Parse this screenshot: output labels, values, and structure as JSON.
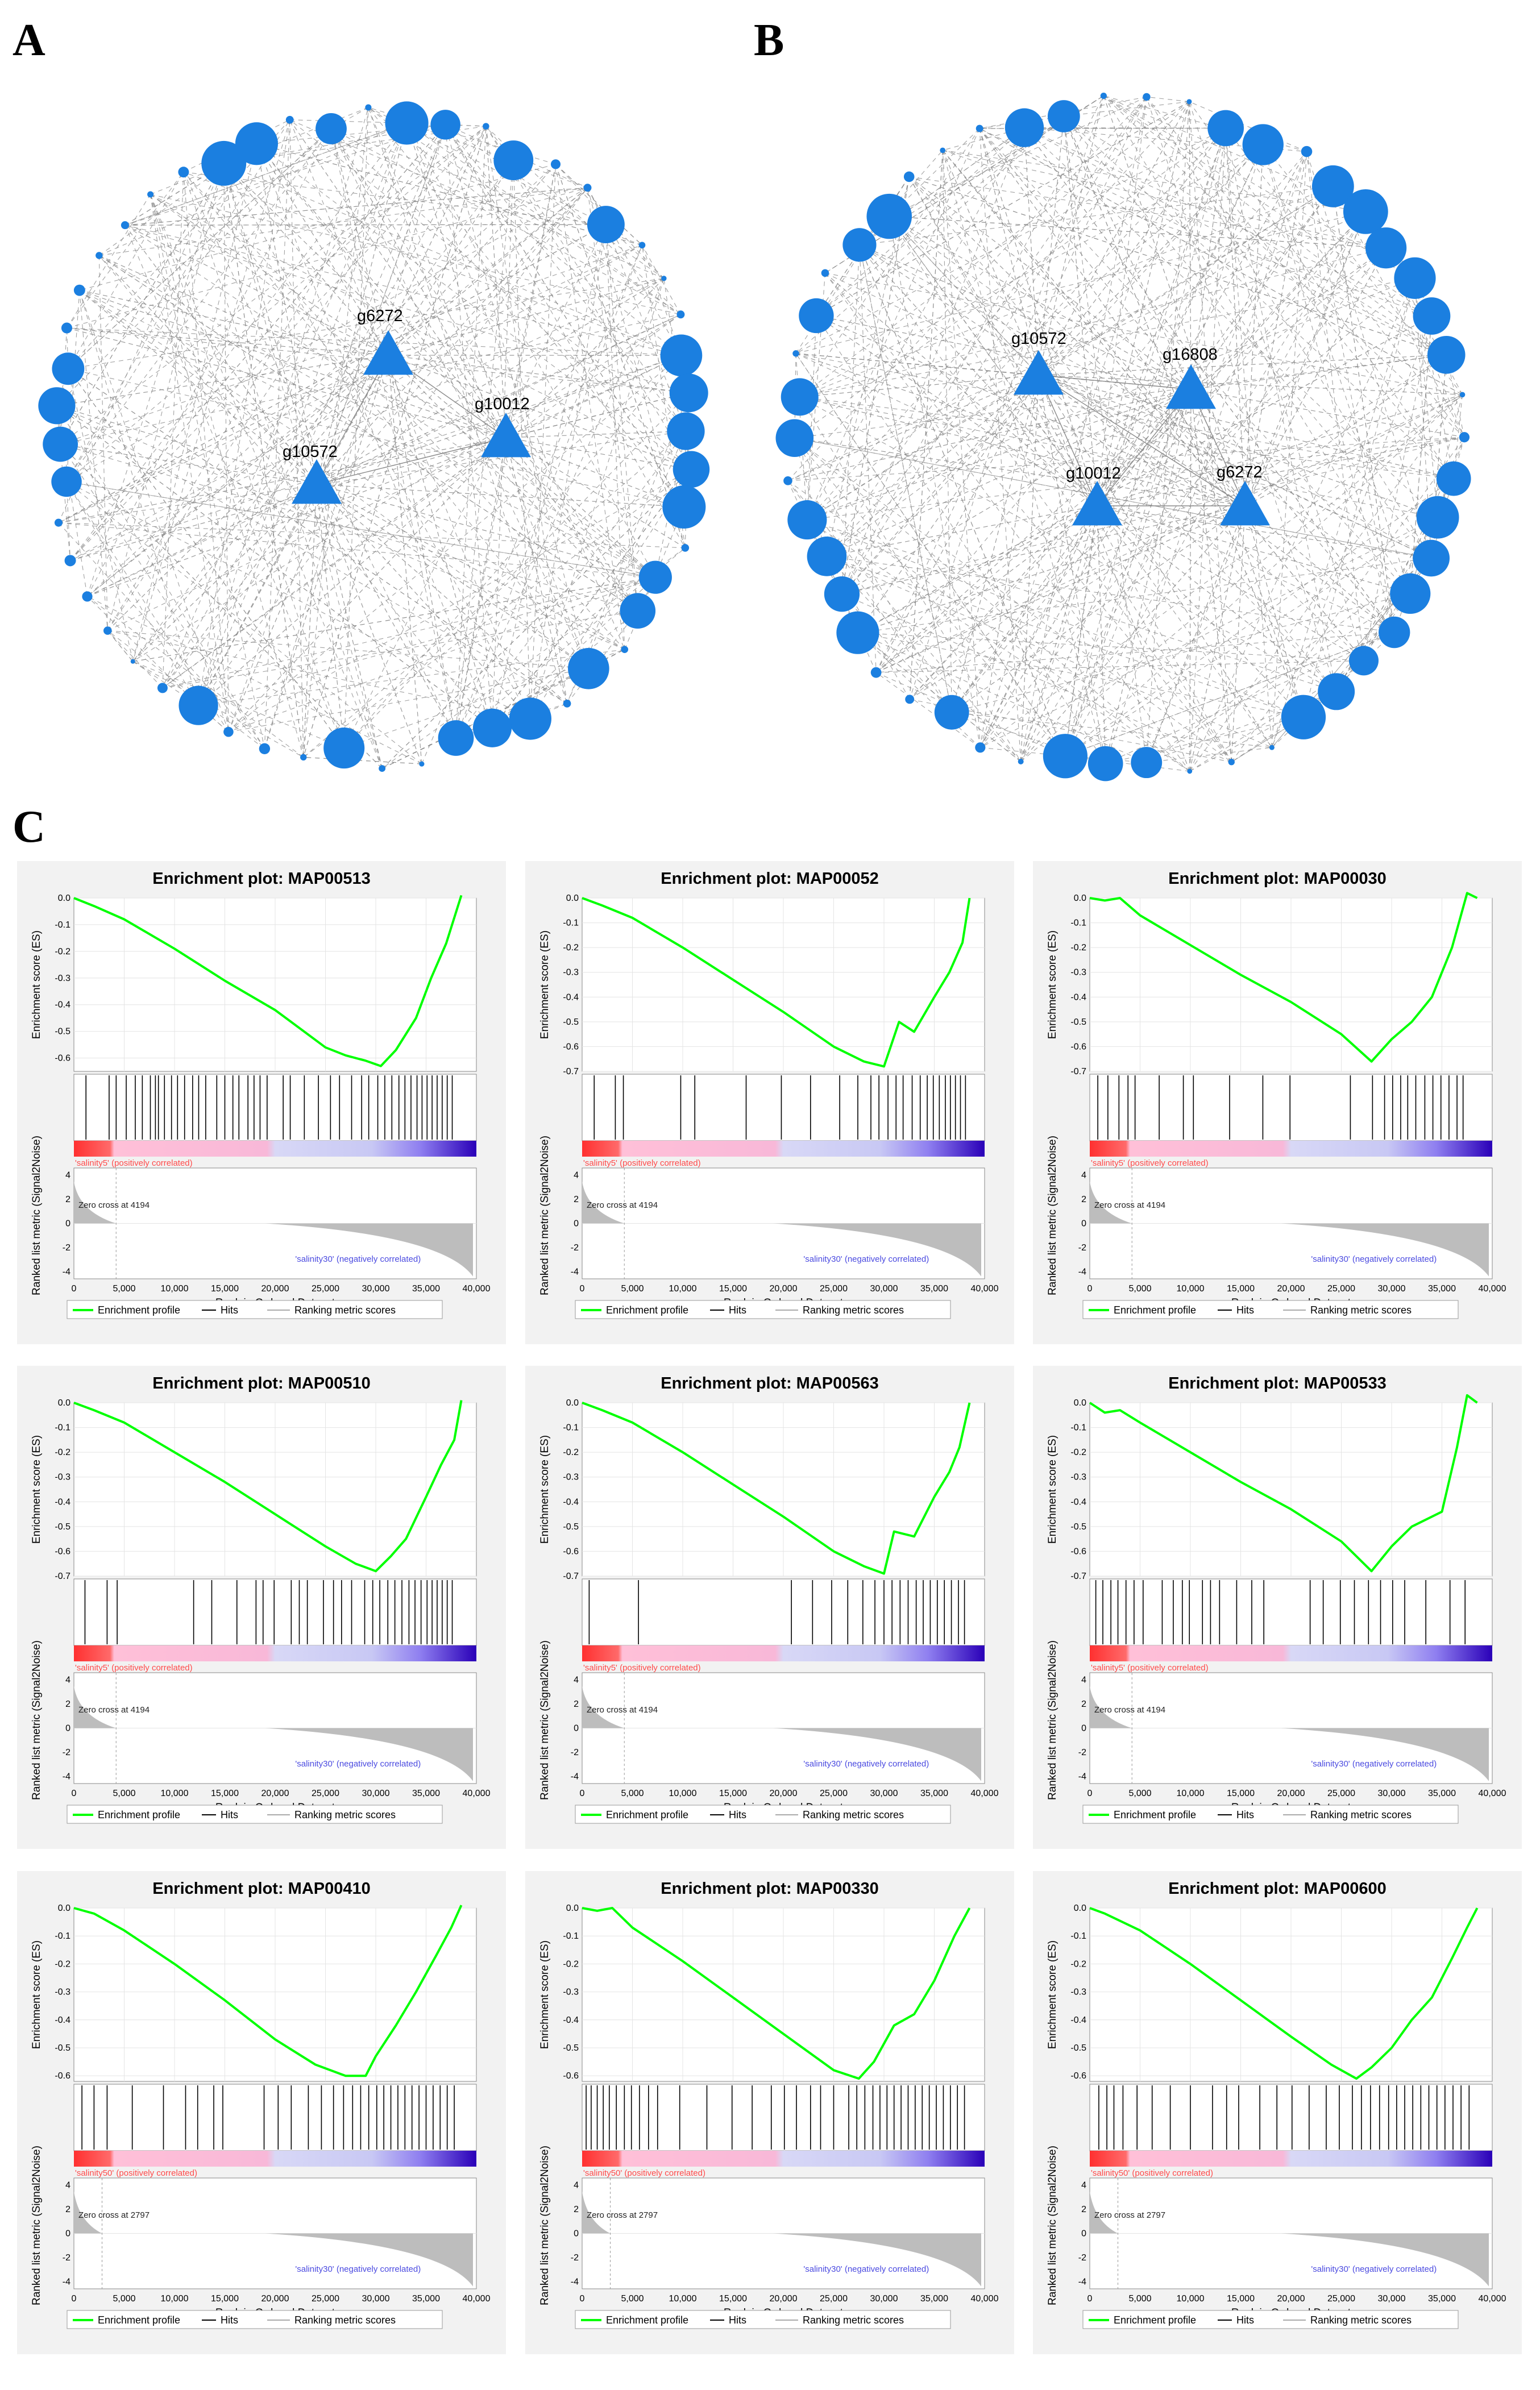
{
  "panel_labels": {
    "a": "A",
    "b": "B",
    "c": "C"
  },
  "colors": {
    "node": "#1b7fe0",
    "edge": "#8a8a8a",
    "es_line": "#00ff00",
    "pos": "#ff3030",
    "neg": "#3000c0",
    "metric": "#bdbdbd"
  },
  "networks": [
    {
      "id": "A",
      "hub_labels": [
        "g6272",
        "g10012",
        "g10572"
      ]
    },
    {
      "id": "B",
      "hub_labels": [
        "g10572",
        "g16808",
        "g10012",
        "g6272"
      ]
    }
  ],
  "gsea_common": {
    "ylabel_es": "Enrichment score (ES)",
    "ylabel_metric": "Ranked list metric (Signal2Noise)",
    "xlabel": "Rank in Ordered Dataset",
    "x_ticks": [
      "0",
      "5,000",
      "10,000",
      "15,000",
      "20,000",
      "25,000",
      "30,000",
      "35,000",
      "40,000"
    ],
    "metric_ticks": [
      "4",
      "2",
      "0",
      "-2",
      "-4"
    ],
    "neg_label": "'salinity30' (negatively correlated)",
    "legend": {
      "profile": "Enrichment profile",
      "hits": "Hits",
      "ranking": "Ranking metric scores"
    }
  },
  "chart_data": [
    {
      "type": "line",
      "title": "Enrichment plot: MAP00513",
      "ylim": [
        -0.65,
        0.0
      ],
      "es_ticks": [
        "0.0",
        "-0.1",
        "-0.2",
        "-0.3",
        "-0.4",
        "-0.5",
        "-0.6"
      ],
      "pos_label": "'salinity5' (positively correlated)",
      "zero_cross": "Zero cross at 4194",
      "zero_x": 4194,
      "x": [
        0,
        2000,
        5000,
        10000,
        15000,
        20000,
        25000,
        27000,
        29000,
        30500,
        32000,
        34000,
        35500,
        37000,
        38500
      ],
      "y": [
        0.0,
        -0.03,
        -0.08,
        -0.19,
        -0.31,
        -0.42,
        -0.56,
        -0.59,
        -0.61,
        -0.63,
        -0.57,
        -0.45,
        -0.3,
        -0.17,
        0.01
      ],
      "hits": [
        1200,
        3500,
        4200,
        5200,
        6100,
        6800,
        7600,
        8100,
        8400,
        9000,
        9700,
        10300,
        11000,
        11800,
        12400,
        13100,
        14200,
        15000,
        15800,
        16400,
        17300,
        17900,
        18500,
        19200,
        20800,
        21500,
        22900,
        24300,
        25500,
        26400,
        27600,
        28600,
        29300,
        30200,
        30900,
        31600,
        32300,
        32900,
        33500,
        34100,
        34600,
        35100,
        35600,
        36100,
        36600,
        37100,
        37600
      ]
    },
    {
      "type": "line",
      "title": "Enrichment plot: MAP00052",
      "ylim": [
        -0.7,
        0.0
      ],
      "es_ticks": [
        "0.0",
        "-0.1",
        "-0.2",
        "-0.3",
        "-0.4",
        "-0.5",
        "-0.6",
        "-0.7"
      ],
      "pos_label": "'salinity5' (positively correlated)",
      "zero_cross": "Zero cross at 4194",
      "zero_x": 4194,
      "x": [
        0,
        2000,
        5000,
        10000,
        15000,
        20000,
        25000,
        28000,
        30000,
        31500,
        33000,
        35000,
        36500,
        37800,
        38500
      ],
      "y": [
        0.0,
        -0.03,
        -0.08,
        -0.2,
        -0.33,
        -0.46,
        -0.6,
        -0.66,
        -0.68,
        -0.5,
        -0.54,
        -0.4,
        -0.3,
        -0.18,
        0.0
      ],
      "hits": [
        1200,
        3300,
        4100,
        9800,
        11200,
        16300,
        19800,
        22700,
        25600,
        27400,
        28700,
        29500,
        30400,
        31200,
        31900,
        32800,
        33600,
        34300,
        34900,
        35500,
        36100,
        36600,
        37100,
        37600,
        38100
      ]
    },
    {
      "type": "line",
      "title": "Enrichment plot: MAP00030",
      "ylim": [
        -0.7,
        0.0
      ],
      "es_ticks": [
        "0.0",
        "-0.1",
        "-0.2",
        "-0.3",
        "-0.4",
        "-0.5",
        "-0.6",
        "-0.7"
      ],
      "pos_label": "'salinity5' (positively correlated)",
      "zero_cross": "Zero cross at 4194",
      "zero_x": 4194,
      "x": [
        0,
        1500,
        3000,
        5000,
        10000,
        15000,
        20000,
        25000,
        28000,
        30000,
        32000,
        34000,
        36000,
        37500,
        38500
      ],
      "y": [
        0.0,
        -0.01,
        0.0,
        -0.07,
        -0.19,
        -0.31,
        -0.42,
        -0.55,
        -0.66,
        -0.57,
        -0.5,
        -0.4,
        -0.2,
        0.02,
        0.0
      ],
      "hits": [
        800,
        1800,
        2900,
        3800,
        4500,
        6900,
        9300,
        10300,
        13900,
        17200,
        19900,
        25900,
        28100,
        29300,
        30100,
        30900,
        31600,
        32400,
        33300,
        34100,
        34900,
        35700,
        36500,
        37100
      ]
    },
    {
      "type": "line",
      "title": "Enrichment plot: MAP00510",
      "ylim": [
        -0.7,
        0.0
      ],
      "es_ticks": [
        "0.0",
        "-0.1",
        "-0.2",
        "-0.3",
        "-0.4",
        "-0.5",
        "-0.6",
        "-0.7"
      ],
      "pos_label": "'salinity5' (positively correlated)",
      "zero_cross": "Zero cross at 4194",
      "zero_x": 4194,
      "x": [
        0,
        2000,
        5000,
        10000,
        15000,
        20000,
        25000,
        28000,
        30000,
        31500,
        33000,
        35000,
        36500,
        37800,
        38500
      ],
      "y": [
        0.0,
        -0.03,
        -0.08,
        -0.2,
        -0.32,
        -0.45,
        -0.58,
        -0.65,
        -0.68,
        -0.62,
        -0.55,
        -0.38,
        -0.25,
        -0.15,
        0.01
      ],
      "hits": [
        1100,
        3300,
        4300,
        11900,
        13700,
        16200,
        18100,
        18800,
        19900,
        21600,
        22400,
        23200,
        24800,
        25800,
        26600,
        27600,
        28900,
        29700,
        30400,
        31200,
        31900,
        32600,
        33300,
        33900,
        34500,
        35100,
        35600,
        36100,
        36600,
        37100,
        37600
      ]
    },
    {
      "type": "line",
      "title": "Enrichment plot: MAP00563",
      "ylim": [
        -0.7,
        0.0
      ],
      "es_ticks": [
        "0.0",
        "-0.1",
        "-0.2",
        "-0.3",
        "-0.4",
        "-0.5",
        "-0.6",
        "-0.7"
      ],
      "pos_label": "'salinity5' (positively correlated)",
      "zero_cross": "Zero cross at 4194",
      "zero_x": 4194,
      "x": [
        0,
        2000,
        5000,
        10000,
        15000,
        20000,
        25000,
        28000,
        30000,
        31000,
        33000,
        35000,
        36500,
        37500,
        38500
      ],
      "y": [
        0.0,
        -0.03,
        -0.08,
        -0.2,
        -0.33,
        -0.46,
        -0.6,
        -0.66,
        -0.69,
        -0.52,
        -0.54,
        -0.38,
        -0.28,
        -0.18,
        0.0
      ],
      "hits": [
        700,
        5600,
        20800,
        22900,
        24800,
        26400,
        27900,
        29100,
        30000,
        30800,
        31600,
        32400,
        33200,
        33900,
        34600,
        35300,
        36000,
        36700,
        37400,
        38000
      ]
    },
    {
      "type": "line",
      "title": "Enrichment plot: MAP00533",
      "ylim": [
        -0.7,
        0.0
      ],
      "es_ticks": [
        "0.0",
        "-0.1",
        "-0.2",
        "-0.3",
        "-0.4",
        "-0.5",
        "-0.6",
        "-0.7"
      ],
      "pos_label": "'salinity5' (positively correlated)",
      "zero_cross": "Zero cross at 4194",
      "zero_x": 4194,
      "x": [
        0,
        1500,
        3000,
        5000,
        10000,
        15000,
        20000,
        25000,
        28000,
        30000,
        32000,
        35000,
        36500,
        37500,
        38500
      ],
      "y": [
        0.0,
        -0.04,
        -0.03,
        -0.08,
        -0.2,
        -0.32,
        -0.43,
        -0.56,
        -0.68,
        -0.58,
        -0.5,
        -0.44,
        -0.18,
        0.03,
        0.0
      ],
      "hits": [
        600,
        1300,
        2100,
        2800,
        3600,
        4400,
        5300,
        7200,
        8300,
        9200,
        9900,
        11200,
        12000,
        12900,
        14600,
        16100,
        17300,
        21900,
        23200,
        24900,
        26300,
        27700,
        28900,
        30100,
        31300,
        33400,
        35800,
        37300
      ]
    },
    {
      "type": "line",
      "title": "Enrichment plot: MAP00410",
      "ylim": [
        -0.62,
        0.0
      ],
      "es_ticks": [
        "0.0",
        "-0.1",
        "-0.2",
        "-0.3",
        "-0.4",
        "-0.5",
        "-0.6"
      ],
      "pos_label": "'salinity50' (positively correlated)",
      "zero_cross": "Zero cross at 2797",
      "zero_x": 2797,
      "x": [
        0,
        2000,
        5000,
        10000,
        15000,
        20000,
        24000,
        27000,
        29000,
        30000,
        32000,
        34000,
        36000,
        37500,
        38500
      ],
      "y": [
        0.0,
        -0.02,
        -0.08,
        -0.2,
        -0.33,
        -0.47,
        -0.56,
        -0.6,
        -0.6,
        -0.53,
        -0.42,
        -0.3,
        -0.17,
        -0.07,
        0.01
      ],
      "hits": [
        800,
        2000,
        3300,
        5800,
        8900,
        11100,
        12300,
        13900,
        14800,
        18900,
        20300,
        21600,
        23300,
        24600,
        25800,
        26800,
        27700,
        28500,
        29300,
        30100,
        30800,
        31500,
        32200,
        32900,
        33600,
        34300,
        35000,
        35700,
        36400,
        37100,
        37800
      ]
    },
    {
      "type": "line",
      "title": "Enrichment plot: MAP00330",
      "ylim": [
        -0.62,
        0.0
      ],
      "es_ticks": [
        "0.0",
        "-0.1",
        "-0.2",
        "-0.3",
        "-0.4",
        "-0.5",
        "-0.6"
      ],
      "pos_label": "'salinity50' (positively correlated)",
      "zero_cross": "Zero cross at 2797",
      "zero_x": 2797,
      "x": [
        0,
        1500,
        3000,
        5000,
        10000,
        15000,
        20000,
        25000,
        27500,
        29000,
        31000,
        33000,
        35000,
        37000,
        38500
      ],
      "y": [
        0.0,
        -0.01,
        0.0,
        -0.07,
        -0.19,
        -0.32,
        -0.45,
        -0.58,
        -0.61,
        -0.55,
        -0.42,
        -0.38,
        -0.26,
        -0.1,
        0.0
      ],
      "hits": [
        400,
        900,
        1500,
        2100,
        2700,
        3400,
        4200,
        4900,
        5700,
        6600,
        7500,
        9700,
        12400,
        14900,
        16900,
        18800,
        20100,
        21300,
        22700,
        23700,
        25000,
        26500,
        27300,
        28100,
        28900,
        29600,
        30300,
        31000,
        31700,
        32400,
        33100,
        33800,
        34500,
        35200,
        35900,
        36600,
        37300,
        38000
      ]
    },
    {
      "type": "line",
      "title": "Enrichment plot: MAP00600",
      "ylim": [
        -0.62,
        0.0
      ],
      "es_ticks": [
        "0.0",
        "-0.1",
        "-0.2",
        "-0.3",
        "-0.4",
        "-0.5",
        "-0.6"
      ],
      "pos_label": "'salinity50' (positively correlated)",
      "zero_cross": "Zero cross at 2797",
      "zero_x": 2797,
      "x": [
        0,
        1500,
        5000,
        10000,
        15000,
        20000,
        24000,
        26500,
        28000,
        30000,
        32000,
        34000,
        36000,
        37500,
        38500
      ],
      "y": [
        0.0,
        -0.02,
        -0.08,
        -0.2,
        -0.33,
        -0.46,
        -0.56,
        -0.61,
        -0.57,
        -0.5,
        -0.4,
        -0.32,
        -0.18,
        -0.07,
        0.0
      ],
      "hits": [
        900,
        1700,
        2400,
        3300,
        4700,
        6200,
        8000,
        10000,
        12200,
        13600,
        14800,
        16900,
        18600,
        20100,
        21800,
        23500,
        24800,
        26100,
        27000,
        27900,
        28800,
        29700,
        30500,
        31300,
        32100,
        32900,
        33700,
        34500,
        35300,
        36100,
        36900,
        37700
      ]
    }
  ]
}
